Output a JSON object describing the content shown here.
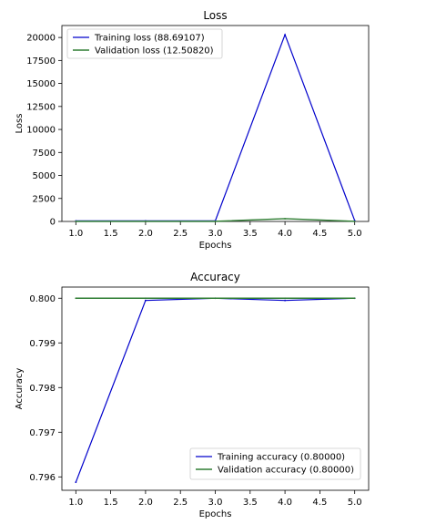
{
  "chart_data": [
    {
      "type": "line",
      "title": "Loss",
      "xlabel": "Epochs",
      "ylabel": "Loss",
      "xlim": [
        0.8,
        5.2
      ],
      "ylim": [
        0,
        21300
      ],
      "xticks": [
        "1.0",
        "1.5",
        "2.0",
        "2.5",
        "3.0",
        "3.5",
        "4.0",
        "4.5",
        "5.0"
      ],
      "yticks": [
        "0",
        "2500",
        "5000",
        "7500",
        "10000",
        "12500",
        "15000",
        "17500",
        "20000"
      ],
      "grid": false,
      "legend_position": "upper-left",
      "x": [
        1,
        2,
        3,
        4,
        5
      ],
      "series": [
        {
          "name": "Training loss (88.69107)",
          "color": "#0000cc",
          "values": [
            60,
            60,
            60,
            20300,
            88.69
          ]
        },
        {
          "name": "Validation loss (12.50820)",
          "color": "#2e7d32",
          "values": [
            12,
            12,
            12,
            300,
            12.51
          ]
        }
      ]
    },
    {
      "type": "line",
      "title": "Accuracy",
      "xlabel": "Epochs",
      "ylabel": "Accuracy",
      "xlim": [
        0.8,
        5.2
      ],
      "ylim": [
        0.7957,
        0.80025
      ],
      "xticks": [
        "1.0",
        "1.5",
        "2.0",
        "2.5",
        "3.0",
        "3.5",
        "4.0",
        "4.5",
        "5.0"
      ],
      "yticks": [
        "0.796",
        "0.797",
        "0.798",
        "0.799",
        "0.800"
      ],
      "grid": false,
      "legend_position": "lower-right",
      "x": [
        1,
        2,
        3,
        4,
        5
      ],
      "series": [
        {
          "name": "Training accuracy (0.80000)",
          "color": "#0000cc",
          "values": [
            0.79588,
            0.79995,
            0.8,
            0.79995,
            0.8
          ]
        },
        {
          "name": "Validation accuracy (0.80000)",
          "color": "#2e7d32",
          "values": [
            0.8,
            0.8,
            0.8,
            0.8,
            0.8
          ]
        }
      ]
    }
  ]
}
